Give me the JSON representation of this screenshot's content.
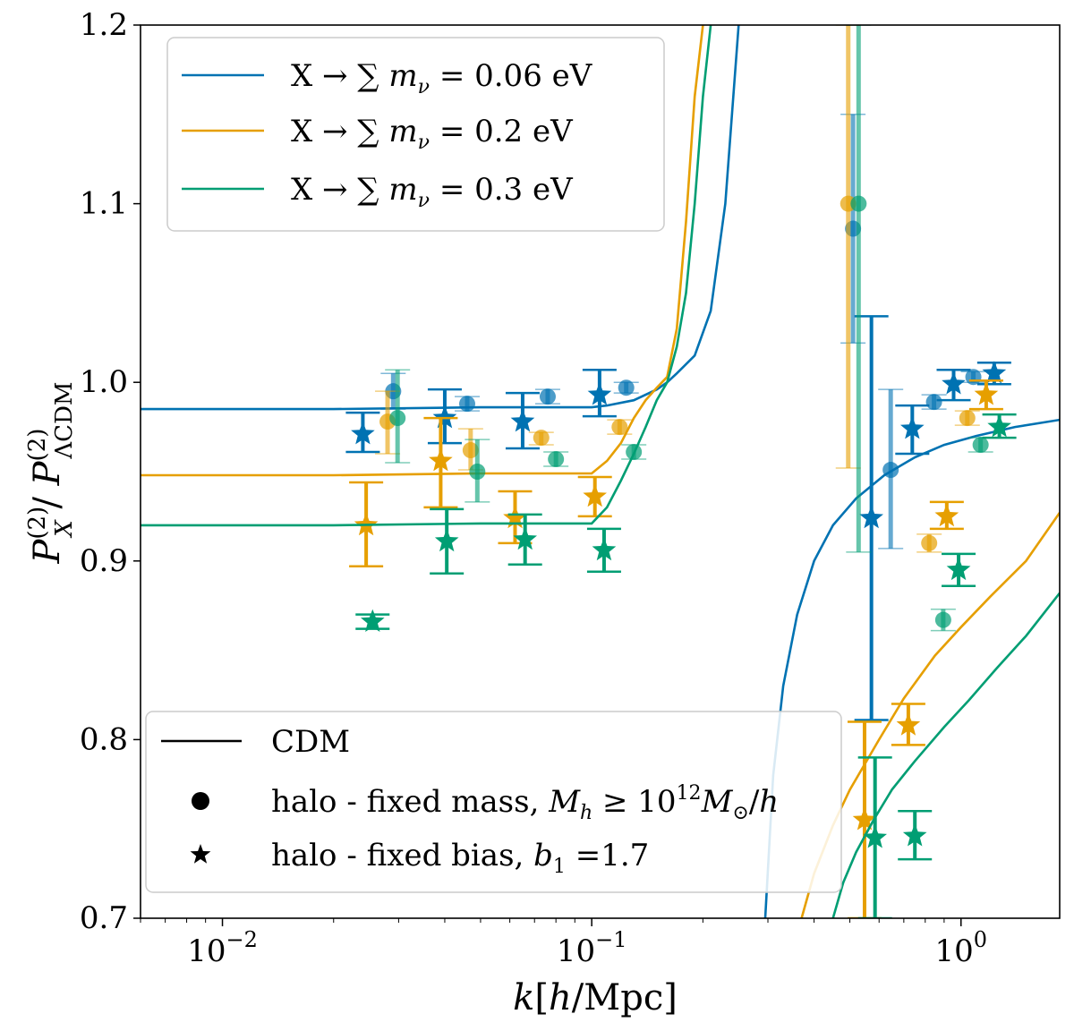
{
  "chart_data": {
    "type": "line",
    "xscale": "log",
    "xlim": [
      0.006,
      1.85
    ],
    "ylim": [
      0.7,
      1.2
    ],
    "xlabel": "k[h/Mpc]",
    "ylabel": "P_X^(2) / P_ΛCDM^(2)",
    "x_ticks": [
      {
        "value": 0.01,
        "base": "10",
        "exp": "−2"
      },
      {
        "value": 0.1,
        "base": "10",
        "exp": "−1"
      },
      {
        "value": 1,
        "base": "10",
        "exp": "0"
      }
    ],
    "y_ticks": [
      {
        "value": 0.7,
        "label": "0.7"
      },
      {
        "value": 0.8,
        "label": "0.8"
      },
      {
        "value": 0.9,
        "label": "0.9"
      },
      {
        "value": 1.0,
        "label": "1.0"
      },
      {
        "value": 1.1,
        "label": "1.1"
      },
      {
        "value": 1.2,
        "label": "1.2"
      }
    ],
    "grid": false,
    "legend_series": {
      "placement": "top-left",
      "entries": [
        {
          "label": "X → ∑ m_ν = 0.06 eV",
          "color": "#0072b2"
        },
        {
          "label": "X → ∑ m_ν = 0.2 eV",
          "color": "#e69f00"
        },
        {
          "label": "X → ∑ m_ν = 0.3 eV",
          "color": "#009e73"
        }
      ]
    },
    "legend_markers": {
      "placement": "bottom-left",
      "entries": [
        {
          "label": "CDM",
          "marker": "line"
        },
        {
          "label": "halo - fixed mass, M_h ≥ 10^12 M_⊙/h",
          "marker": "circle"
        },
        {
          "label": "halo - fixed bias, b_1 =1.7",
          "marker": "star"
        }
      ]
    },
    "series": [
      {
        "name": "X → ∑ m_ν = 0.06 eV",
        "color": "#0072b2",
        "curve_low": {
          "x": [
            0.006,
            0.02,
            0.05,
            0.08,
            0.1,
            0.11,
            0.13,
            0.15,
            0.16,
            0.17,
            0.19,
            0.21,
            0.23,
            0.25
          ],
          "y": [
            0.985,
            0.985,
            0.986,
            0.986,
            0.986,
            0.987,
            0.99,
            0.996,
            1.0,
            1.005,
            1.015,
            1.04,
            1.1,
            1.2
          ]
        },
        "curve_high": {
          "x": [
            0.295,
            0.31,
            0.33,
            0.36,
            0.4,
            0.45,
            0.52,
            0.62,
            0.75,
            0.9,
            1.1,
            1.4,
            1.85
          ],
          "y": [
            0.7,
            0.78,
            0.83,
            0.87,
            0.9,
            0.92,
            0.935,
            0.948,
            0.958,
            0.965,
            0.97,
            0.975,
            0.979
          ]
        },
        "fixed_mass": [
          {
            "x": 0.029,
            "y": 0.995,
            "lo": 0.985,
            "hi": 1.005
          },
          {
            "x": 0.046,
            "y": 0.988,
            "lo": 0.984,
            "hi": 0.992
          },
          {
            "x": 0.076,
            "y": 0.992,
            "lo": 0.988,
            "hi": 0.996
          },
          {
            "x": 0.124,
            "y": 0.997,
            "lo": 0.994,
            "hi": 1.0
          },
          {
            "x": 0.51,
            "y": 1.086,
            "lo": 1.022,
            "hi": 1.15
          },
          {
            "x": 0.645,
            "y": 0.951,
            "lo": 0.907,
            "hi": 0.996
          },
          {
            "x": 0.845,
            "y": 0.989,
            "lo": 0.985,
            "hi": 0.993
          },
          {
            "x": 1.08,
            "y": 1.003,
            "lo": 1.0,
            "hi": 1.006
          }
        ],
        "fixed_bias": [
          {
            "x": 0.024,
            "y": 0.971,
            "lo": 0.961,
            "hi": 0.983
          },
          {
            "x": 0.04,
            "y": 0.98,
            "lo": 0.966,
            "hi": 0.996
          },
          {
            "x": 0.065,
            "y": 0.978,
            "lo": 0.963,
            "hi": 0.994
          },
          {
            "x": 0.105,
            "y": 0.993,
            "lo": 0.981,
            "hi": 1.007
          },
          {
            "x": 0.572,
            "y": 0.924,
            "lo": 0.811,
            "hi": 1.037
          },
          {
            "x": 0.738,
            "y": 0.974,
            "lo": 0.96,
            "hi": 0.987
          },
          {
            "x": 0.955,
            "y": 0.999,
            "lo": 0.99,
            "hi": 1.007
          },
          {
            "x": 1.23,
            "y": 1.005,
            "lo": 0.999,
            "hi": 1.011
          }
        ]
      },
      {
        "name": "X → ∑ m_ν = 0.2 eV",
        "color": "#e69f00",
        "curve_low": {
          "x": [
            0.006,
            0.02,
            0.05,
            0.08,
            0.1,
            0.11,
            0.12,
            0.13,
            0.14,
            0.15,
            0.16,
            0.17,
            0.18,
            0.19,
            0.2
          ],
          "y": [
            0.948,
            0.948,
            0.949,
            0.949,
            0.949,
            0.956,
            0.966,
            0.98,
            0.99,
            0.997,
            1.003,
            1.03,
            1.09,
            1.16,
            1.2
          ]
        },
        "curve_high": {
          "x": [
            0.37,
            0.4,
            0.45,
            0.5,
            0.6,
            0.7,
            0.85,
            1.0,
            1.2,
            1.5,
            1.85
          ],
          "y": [
            0.7,
            0.725,
            0.752,
            0.772,
            0.8,
            0.823,
            0.847,
            0.863,
            0.88,
            0.9,
            0.927
          ]
        },
        "fixed_mass": [
          {
            "x": 0.028,
            "y": 0.978,
            "lo": 0.96,
            "hi": 0.995
          },
          {
            "x": 0.047,
            "y": 0.962,
            "lo": 0.951,
            "hi": 0.974
          },
          {
            "x": 0.073,
            "y": 0.969,
            "lo": 0.965,
            "hi": 0.972
          },
          {
            "x": 0.119,
            "y": 0.975,
            "lo": 0.971,
            "hi": 0.979
          },
          {
            "x": 0.495,
            "y": 1.1,
            "lo": 0.952,
            "hi": 1.2
          },
          {
            "x": 0.82,
            "y": 0.91,
            "lo": 0.905,
            "hi": 0.915
          },
          {
            "x": 1.04,
            "y": 0.98,
            "lo": 0.976,
            "hi": 0.984
          }
        ],
        "fixed_bias": [
          {
            "x": 0.0245,
            "y": 0.92,
            "lo": 0.897,
            "hi": 0.944
          },
          {
            "x": 0.039,
            "y": 0.956,
            "lo": 0.93,
            "hi": 0.98
          },
          {
            "x": 0.062,
            "y": 0.924,
            "lo": 0.91,
            "hi": 0.939
          },
          {
            "x": 0.102,
            "y": 0.936,
            "lo": 0.925,
            "hi": 0.947
          },
          {
            "x": 0.548,
            "y": 0.755,
            "lo": 0.7,
            "hi": 0.81
          },
          {
            "x": 0.72,
            "y": 0.808,
            "lo": 0.797,
            "hi": 0.82
          },
          {
            "x": 0.915,
            "y": 0.925,
            "lo": 0.918,
            "hi": 0.933
          },
          {
            "x": 1.17,
            "y": 0.993,
            "lo": 0.985,
            "hi": 1.001
          }
        ]
      },
      {
        "name": "X → ∑ m_ν = 0.3 eV",
        "color": "#009e73",
        "curve_low": {
          "x": [
            0.006,
            0.02,
            0.05,
            0.08,
            0.1,
            0.11,
            0.12,
            0.13,
            0.14,
            0.15,
            0.16,
            0.17,
            0.18,
            0.19,
            0.2,
            0.21
          ],
          "y": [
            0.92,
            0.92,
            0.921,
            0.921,
            0.921,
            0.93,
            0.945,
            0.96,
            0.975,
            0.99,
            1.0,
            1.02,
            1.05,
            1.1,
            1.16,
            1.2
          ]
        },
        "curve_high": {
          "x": [
            0.45,
            0.48,
            0.52,
            0.58,
            0.65,
            0.75,
            0.9,
            1.05,
            1.25,
            1.5,
            1.85
          ],
          "y": [
            0.7,
            0.72,
            0.737,
            0.755,
            0.772,
            0.788,
            0.807,
            0.822,
            0.84,
            0.858,
            0.882
          ]
        },
        "fixed_mass": [
          {
            "x": 0.0298,
            "y": 0.98,
            "lo": 0.955,
            "hi": 1.007
          },
          {
            "x": 0.049,
            "y": 0.95,
            "lo": 0.933,
            "hi": 0.968
          },
          {
            "x": 0.08,
            "y": 0.957,
            "lo": 0.953,
            "hi": 0.961
          },
          {
            "x": 0.13,
            "y": 0.961,
            "lo": 0.957,
            "hi": 0.965
          },
          {
            "x": 0.528,
            "y": 1.1,
            "lo": 0.905,
            "hi": 1.2
          },
          {
            "x": 0.895,
            "y": 0.867,
            "lo": 0.861,
            "hi": 0.873
          },
          {
            "x": 1.13,
            "y": 0.965,
            "lo": 0.961,
            "hi": 0.969
          }
        ],
        "fixed_bias": [
          {
            "x": 0.0255,
            "y": 0.866,
            "lo": 0.862,
            "hi": 0.87
          },
          {
            "x": 0.0405,
            "y": 0.911,
            "lo": 0.893,
            "hi": 0.929
          },
          {
            "x": 0.066,
            "y": 0.912,
            "lo": 0.898,
            "hi": 0.926
          },
          {
            "x": 0.108,
            "y": 0.906,
            "lo": 0.894,
            "hi": 0.918
          },
          {
            "x": 0.585,
            "y": 0.745,
            "lo": 0.7,
            "hi": 0.79
          },
          {
            "x": 0.75,
            "y": 0.746,
            "lo": 0.733,
            "hi": 0.76
          },
          {
            "x": 0.985,
            "y": 0.895,
            "lo": 0.886,
            "hi": 0.904
          },
          {
            "x": 1.27,
            "y": 0.975,
            "lo": 0.969,
            "hi": 0.982
          }
        ]
      }
    ]
  }
}
